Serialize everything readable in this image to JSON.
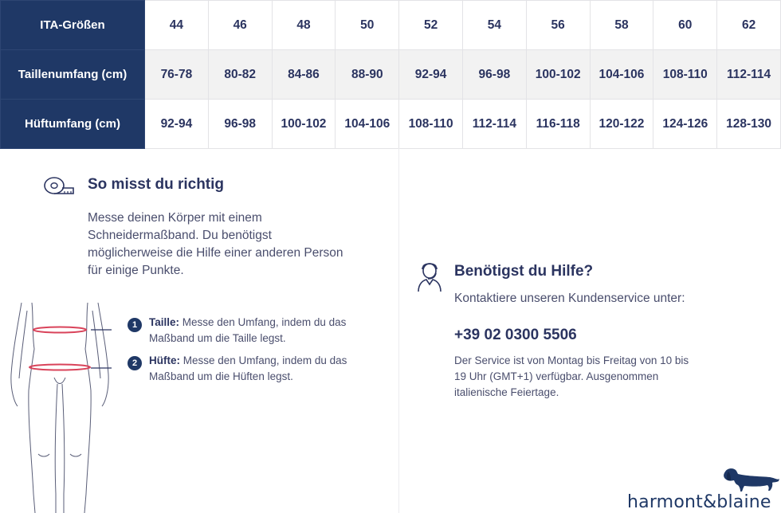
{
  "size_table": {
    "rows": [
      {
        "header": "ITA-Größen",
        "values": [
          "44",
          "46",
          "48",
          "50",
          "52",
          "54",
          "56",
          "58",
          "60",
          "62"
        ]
      },
      {
        "header": "Taillenumfang (cm)",
        "values": [
          "76-78",
          "80-82",
          "84-86",
          "88-90",
          "92-94",
          "96-98",
          "100-102",
          "104-106",
          "108-110",
          "112-114"
        ]
      },
      {
        "header": "Hüftumfang (cm)",
        "values": [
          "92-94",
          "96-98",
          "100-102",
          "104-106",
          "108-110",
          "112-114",
          "116-118",
          "120-122",
          "124-126",
          "128-130"
        ]
      }
    ]
  },
  "measure": {
    "title": "So misst du richtig",
    "text": "Messe deinen Körper mit einem Schneidermaßband. Du benötigst möglicherweise die Hilfe einer anderen Person für einige Punkte.",
    "steps": [
      {
        "number": "1",
        "label": "Taille:",
        "text": " Messe den Umfang, indem du das Maßband um die Taille legst."
      },
      {
        "number": "2",
        "label": "Hüfte:",
        "text": " Messe den Umfang, indem du das Maßband um die Hüften legst."
      }
    ],
    "icon": "measuring-tape-icon"
  },
  "help": {
    "title": "Benötigst du Hilfe?",
    "text": "Kontaktiere unseren Kundenservice unter:",
    "phone": "+39 02 0300 5506",
    "hours": "Der Service ist von Montag bis Freitag von 10 bis 19 Uhr (GMT+1) verfügbar. Ausgenommen italienische Feiertage.",
    "icon": "customer-service-agent-icon"
  },
  "brand": {
    "logo_text": "harmont&blaine",
    "logo_icon": "dachshund-icon"
  },
  "colors": {
    "header_navy": "#1f3866",
    "text_dark": "#2b3460",
    "measure_line": "#d9435a"
  }
}
